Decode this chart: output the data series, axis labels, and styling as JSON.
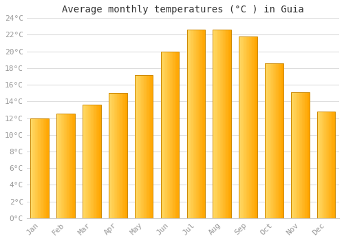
{
  "title": "Average monthly temperatures (°C ) in Guia",
  "months": [
    "Jan",
    "Feb",
    "Mar",
    "Apr",
    "May",
    "Jun",
    "Jul",
    "Aug",
    "Sep",
    "Oct",
    "Nov",
    "Dec"
  ],
  "temperatures": [
    12.0,
    12.5,
    13.6,
    15.0,
    17.2,
    20.0,
    22.6,
    22.6,
    21.8,
    18.6,
    15.1,
    12.8
  ],
  "bar_color_left": "#FFD966",
  "bar_color_right": "#FFA500",
  "bar_edge_color": "#CC8800",
  "ylim": [
    0,
    24
  ],
  "ytick_step": 2,
  "background_color": "#ffffff",
  "grid_color": "#dddddd",
  "title_fontsize": 10,
  "tick_fontsize": 8,
  "font_family": "monospace",
  "tick_color": "#999999",
  "title_color": "#333333"
}
